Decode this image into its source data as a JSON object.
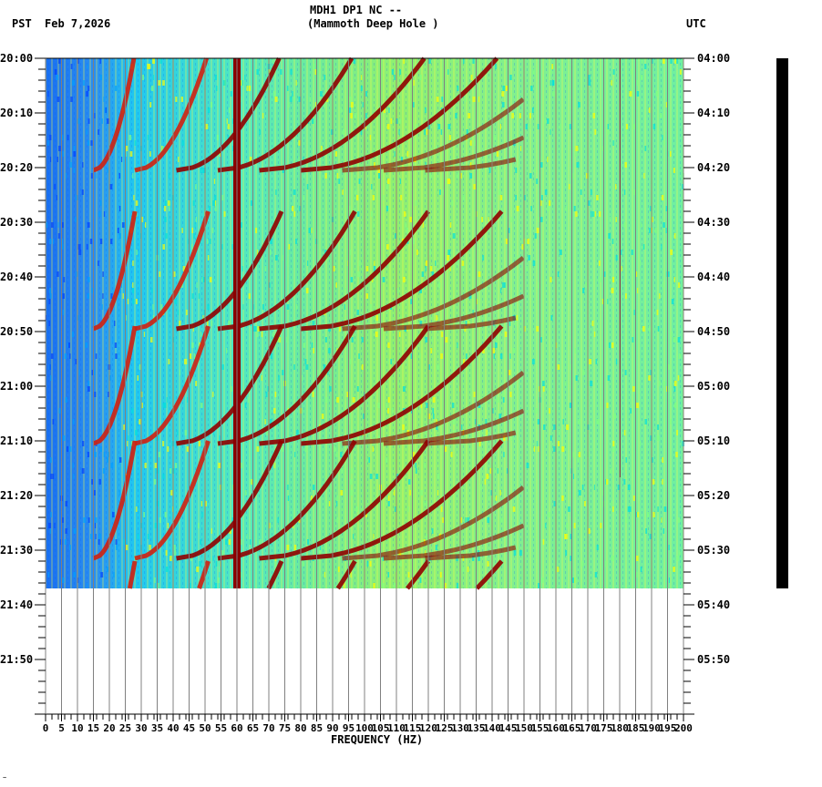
{
  "header": {
    "title_line1": "MDH1 DP1 NC --",
    "title_line2": "(Mammoth Deep Hole )",
    "left_timezone": "PST",
    "date": "Feb 7,2026",
    "right_timezone": "UTC"
  },
  "footer_mark": "~",
  "chart_data": {
    "type": "heatmap",
    "title": "MDH1 DP1 NC -- (Mammoth Deep Hole )",
    "subtitle": "Feb 7,2026",
    "xlabel": "FREQUENCY (HZ)",
    "ylabel_left": "PST",
    "ylabel_right": "UTC",
    "xlim": [
      0,
      200
    ],
    "x_ticks": [
      0,
      5,
      10,
      15,
      20,
      25,
      30,
      35,
      40,
      45,
      50,
      55,
      60,
      65,
      70,
      75,
      80,
      85,
      90,
      95,
      100,
      105,
      110,
      115,
      120,
      125,
      130,
      135,
      140,
      145,
      150,
      155,
      160,
      165,
      170,
      175,
      180,
      185,
      190,
      195,
      200
    ],
    "y_ticks_left": [
      "20:00",
      "20:10",
      "20:20",
      "20:30",
      "20:40",
      "20:50",
      "21:00",
      "21:10",
      "21:20",
      "21:30",
      "21:40",
      "21:50"
    ],
    "y_ticks_right": [
      "04:00",
      "04:10",
      "04:20",
      "04:30",
      "04:40",
      "04:50",
      "05:00",
      "05:10",
      "05:20",
      "05:30",
      "05:40",
      "05:50"
    ],
    "time_range_pst": [
      "20:00",
      "22:00"
    ],
    "data_end_pst": "21:37",
    "grid": "vertical lines every 5 Hz",
    "colormap": [
      "#0040ff",
      "#00a0ff",
      "#00e0e0",
      "#80ff80",
      "#ffff00",
      "#ff8000",
      "#c00000",
      "#800000"
    ],
    "features": [
      {
        "type": "constant line",
        "frequency_hz": 60,
        "description": "strong 60 Hz power line, dark red throughout"
      },
      {
        "type": "constant line",
        "frequency_hz": 180,
        "description": "weak narrow line near 180 Hz"
      },
      {
        "type": "sweeping harmonics",
        "description": "repeating arc-shaped harmonic sweeps rising in frequency, restarting about every 21-22 minutes at ~20:28, 20:49, 21:10, 21:32 PST"
      }
    ]
  }
}
